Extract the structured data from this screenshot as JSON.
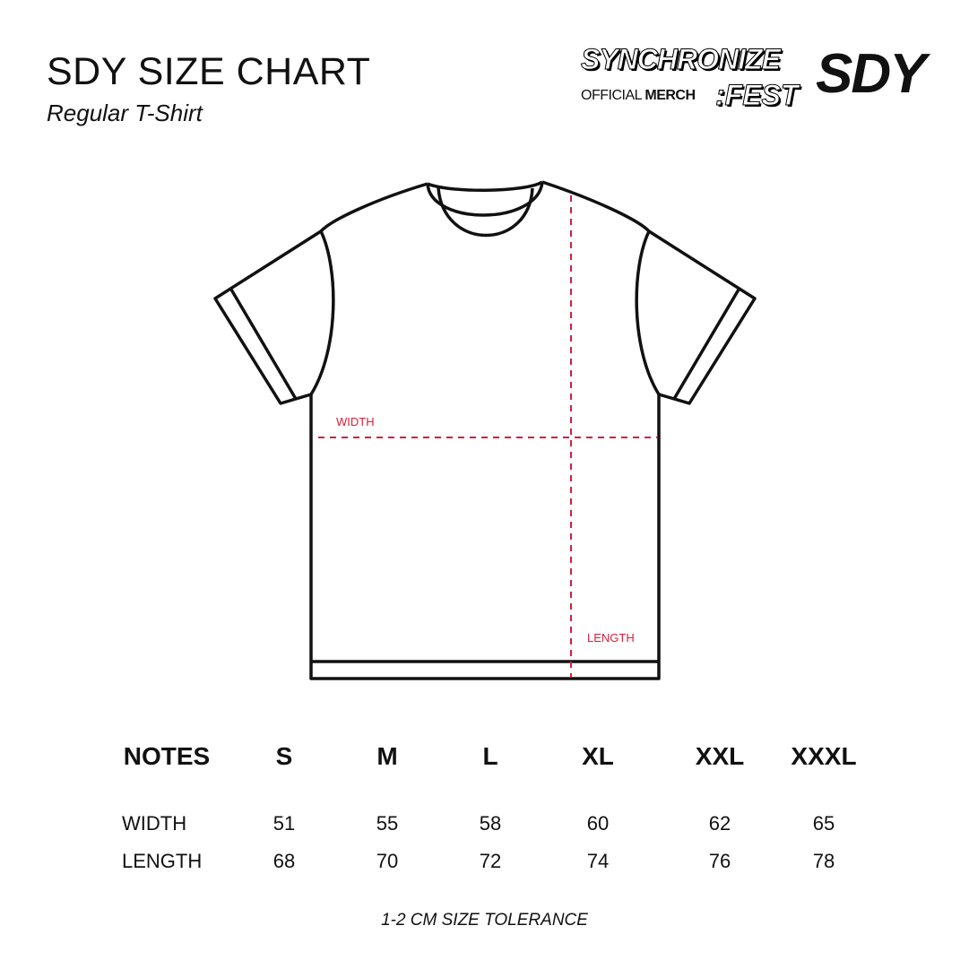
{
  "header": {
    "title": "SDY SIZE CHART",
    "subtitle": "Regular T-Shirt"
  },
  "logos": {
    "synchronize": "SYNCHRONIZE",
    "fest": ":FEST",
    "official": "OFFICIAL",
    "merch": "MERCH",
    "brand": "SDY"
  },
  "diagram": {
    "width_label": "WIDTH",
    "length_label": "LENGTH",
    "measure_color": "#d81e3a"
  },
  "table": {
    "headers": [
      "NOTES",
      "S",
      "M",
      "L",
      "XL",
      "XXL",
      "XXXL"
    ],
    "rows": [
      {
        "label": "WIDTH",
        "values": [
          "51",
          "55",
          "58",
          "60",
          "62",
          "65"
        ]
      },
      {
        "label": "LENGTH",
        "values": [
          "68",
          "70",
          "72",
          "74",
          "76",
          "78"
        ]
      }
    ]
  },
  "footer": {
    "tolerance": "1-2 CM SIZE TOLERANCE"
  }
}
